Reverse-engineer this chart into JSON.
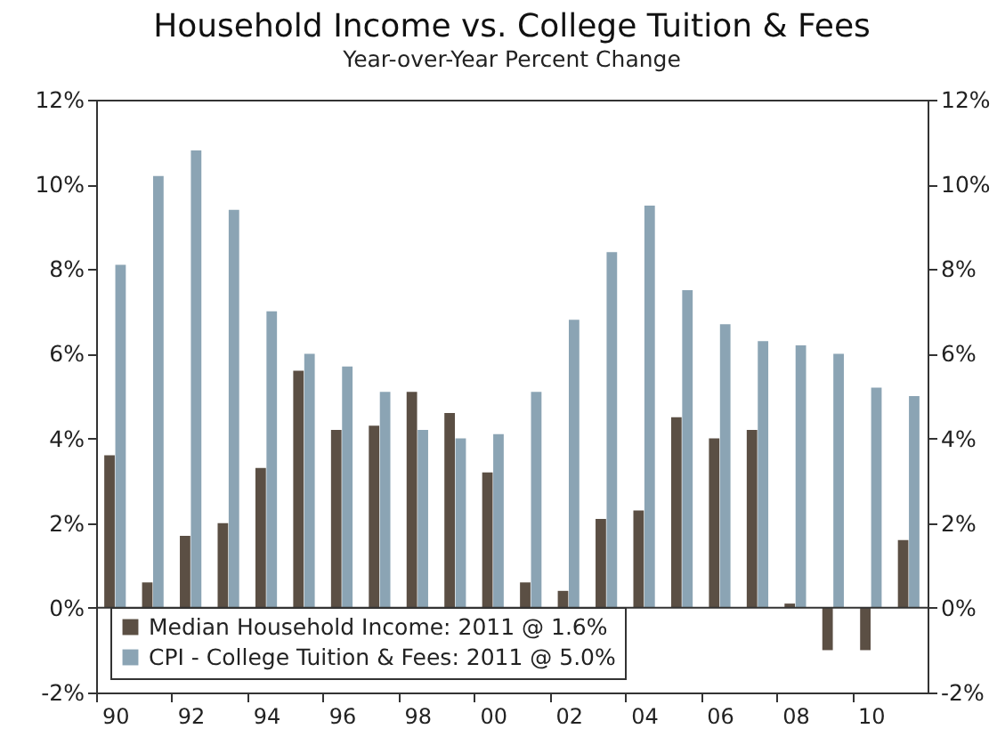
{
  "chart_data": {
    "type": "bar",
    "title": "Household Income vs. College Tuition & Fees",
    "subtitle": "Year-over-Year Percent Change",
    "categories": [
      "90",
      null,
      "92",
      null,
      "94",
      null,
      "96",
      null,
      "98",
      null,
      "00",
      null,
      "02",
      null,
      "04",
      null,
      "06",
      null,
      "08",
      null,
      "10",
      null
    ],
    "series": [
      {
        "name": "Median Household Income: 2011 @ 1.6%",
        "color": "#5b4f44",
        "values": [
          3.6,
          0.6,
          1.7,
          2.0,
          3.3,
          5.6,
          4.2,
          4.3,
          5.1,
          4.6,
          3.2,
          0.6,
          0.4,
          2.1,
          2.3,
          4.5,
          4.0,
          4.2,
          0.1,
          -1.0,
          -1.0,
          1.6
        ]
      },
      {
        "name": "CPI - College Tuition & Fees: 2011 @ 5.0%",
        "color": "#8ba4b4",
        "values": [
          8.1,
          10.2,
          10.8,
          9.4,
          7.0,
          6.0,
          5.7,
          5.1,
          4.2,
          4.0,
          4.1,
          5.1,
          6.8,
          8.4,
          9.5,
          7.5,
          6.7,
          6.3,
          6.2,
          6.0,
          5.2,
          5.0
        ]
      }
    ],
    "ylim": [
      -2,
      12
    ],
    "yticks": [
      {
        "value": -2,
        "label": "-2%"
      },
      {
        "value": 0,
        "label": "0%"
      },
      {
        "value": 2,
        "label": "2%"
      },
      {
        "value": 4,
        "label": "4%"
      },
      {
        "value": 6,
        "label": "6%"
      },
      {
        "value": 8,
        "label": "8%"
      },
      {
        "value": 10,
        "label": "10%"
      },
      {
        "value": 12,
        "label": "12%"
      }
    ],
    "y2lim": [
      -2,
      12
    ],
    "y2ticks": [
      {
        "value": -2,
        "label": "-2%"
      },
      {
        "value": 0,
        "label": "0%"
      },
      {
        "value": 2,
        "label": "2%"
      },
      {
        "value": 4,
        "label": "4%"
      },
      {
        "value": 6,
        "label": "6%"
      },
      {
        "value": 8,
        "label": "8%"
      },
      {
        "value": 10,
        "label": "10%"
      },
      {
        "value": 12,
        "label": "12%"
      }
    ],
    "legend": "bottom left"
  }
}
